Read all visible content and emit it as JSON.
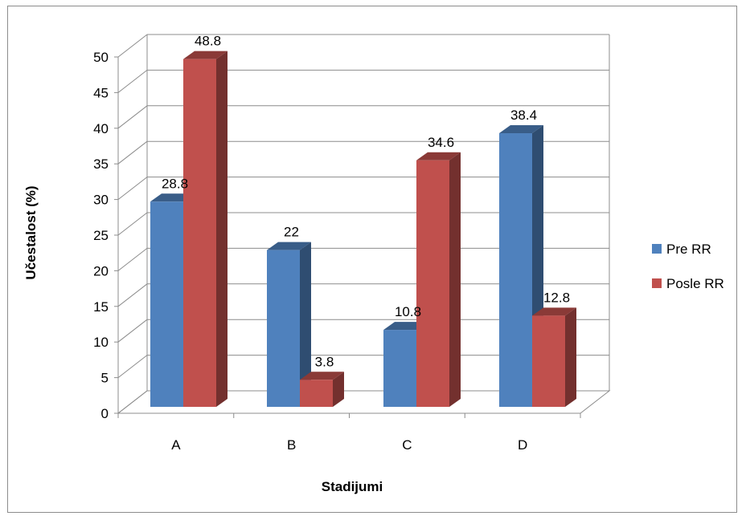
{
  "chart_data": {
    "type": "bar",
    "subtype": "3d-clustered-column",
    "title": "",
    "xlabel": "Stadijumi",
    "ylabel": "Učestalost (%)",
    "ylim": [
      0,
      50
    ],
    "yticks": [
      0,
      5,
      10,
      15,
      20,
      25,
      30,
      35,
      40,
      45,
      50
    ],
    "categories": [
      "A",
      "B",
      "C",
      "D"
    ],
    "series": [
      {
        "name": "Pre RR",
        "values": [
          28.8,
          22,
          10.8,
          38.4
        ],
        "labels": [
          "28.8",
          "22",
          "10.8",
          "38.4"
        ],
        "color": "#4f81bd"
      },
      {
        "name": "Posle RR",
        "values": [
          48.8,
          3.8,
          34.6,
          12.8
        ],
        "labels": [
          "48.8",
          "3.8",
          "34.6",
          "12.8"
        ],
        "color": "#c0504d"
      }
    ],
    "grid": true,
    "legend": "right"
  }
}
